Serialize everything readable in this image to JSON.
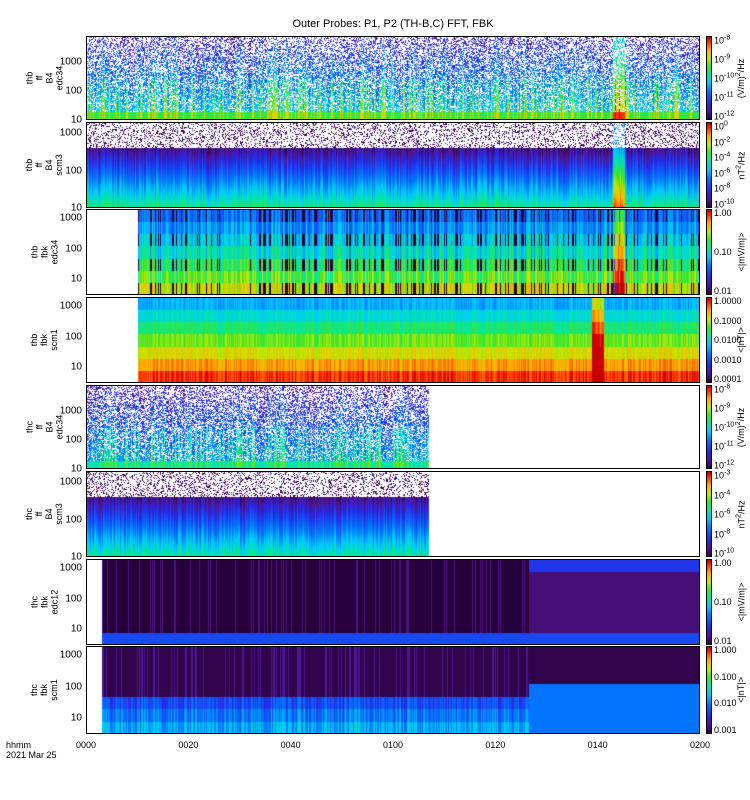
{
  "title": "Outer Probes: P1, P2 (TH-B,C) FFT, FBK",
  "time_label": "hhmm",
  "date_label": "2021 Mar 25",
  "x_ticks": [
    "0000",
    "0020",
    "0040",
    "0100",
    "0120",
    "0140",
    "0200"
  ],
  "chart_data": [
    {
      "type": "heatmap",
      "panel": "thb-ff-b4-edc34",
      "ylabel_lines": [
        "thb",
        "ff",
        "B4",
        "edc34"
      ],
      "y_ticks": [
        "10",
        "100",
        "1000"
      ],
      "y_scale": "log",
      "ylim": [
        10,
        8000
      ],
      "colorbar_ticks": [
        [
          "10",
          "-8"
        ],
        [
          "10",
          "-9"
        ],
        [
          "10",
          "-10"
        ],
        [
          "10",
          "-11"
        ],
        [
          "10",
          "-12"
        ]
      ],
      "colorbar_label": [
        "(V/m)",
        "2",
        "/Hz"
      ],
      "x_range": [
        "0000",
        "0200"
      ],
      "data_extent": [
        "0000",
        "0200"
      ],
      "style": "ff_edc",
      "intensity": 0.45,
      "burst_at": "0144"
    },
    {
      "type": "heatmap",
      "panel": "thb-ff-b4-scm3",
      "ylabel_lines": [
        "thb",
        "ff",
        "B4",
        "scm3"
      ],
      "y_ticks": [
        "10",
        "100",
        "1000"
      ],
      "y_scale": "log",
      "ylim": [
        10,
        2000
      ],
      "colorbar_ticks": [
        [
          "10",
          "0"
        ],
        [
          "10",
          "-2"
        ],
        [
          "10",
          "-4"
        ],
        [
          "10",
          "-6"
        ],
        [
          "10",
          "-8"
        ],
        [
          "10",
          "-10"
        ]
      ],
      "colorbar_label": [
        "nT",
        "2",
        "/Hz"
      ],
      "x_range": [
        "0000",
        "0200"
      ],
      "data_extent": [
        "0000",
        "0200"
      ],
      "style": "ff_scm",
      "intensity": 0.5,
      "burst_at": "0144"
    },
    {
      "type": "heatmap",
      "panel": "thb-fbk-edc34",
      "ylabel_lines": [
        "thb",
        "fbk",
        "edc34"
      ],
      "y_ticks": [
        "10",
        "100",
        "1000"
      ],
      "y_scale": "log",
      "ylim": [
        3,
        2000
      ],
      "colorbar_ticks": [
        [
          "1.00",
          ""
        ],
        [
          "0.10",
          ""
        ],
        [
          "0.01",
          ""
        ]
      ],
      "colorbar_label": [
        "<|mV/m|>"
      ],
      "x_range": [
        "0000",
        "0200"
      ],
      "data_extent": [
        "0010",
        "0200"
      ],
      "style": "fbk_edc",
      "intensity": 0.4,
      "burst_at": "0144"
    },
    {
      "type": "heatmap",
      "panel": "thb-fbk-scm1",
      "ylabel_lines": [
        "thb",
        "fbk",
        "scm1"
      ],
      "y_ticks": [
        "10",
        "100",
        "1000"
      ],
      "y_scale": "log",
      "ylim": [
        3,
        2000
      ],
      "colorbar_ticks": [
        [
          "1.0000",
          ""
        ],
        [
          "0.1000",
          ""
        ],
        [
          "0.0100",
          ""
        ],
        [
          "0.0010",
          ""
        ],
        [
          "0.0001",
          ""
        ]
      ],
      "colorbar_label": [
        "<|nT|>"
      ],
      "x_range": [
        "0000",
        "0200"
      ],
      "data_extent": [
        "0010",
        "0200"
      ],
      "style": "fbk_scm",
      "intensity": 0.5,
      "burst_at": "0140"
    },
    {
      "type": "heatmap",
      "panel": "thc-ff-b4-edc34",
      "ylabel_lines": [
        "thc",
        "ff",
        "B4",
        "edc34"
      ],
      "y_ticks": [
        "10",
        "100",
        "1000"
      ],
      "y_scale": "log",
      "ylim": [
        10,
        8000
      ],
      "colorbar_ticks": [
        [
          "10",
          "-8"
        ],
        [
          "10",
          "-9"
        ],
        [
          "10",
          "-10"
        ],
        [
          "10",
          "-11"
        ],
        [
          "10",
          "-12"
        ]
      ],
      "colorbar_label": [
        "(V/m)",
        "2",
        "/Hz"
      ],
      "x_range": [
        "0000",
        "0200"
      ],
      "data_extent": [
        "0000",
        "0107"
      ],
      "style": "ff_edc",
      "intensity": 0.3,
      "burst_at": ""
    },
    {
      "type": "heatmap",
      "panel": "thc-ff-b4-scm3",
      "ylabel_lines": [
        "thc",
        "ff",
        "B4",
        "scm3"
      ],
      "y_ticks": [
        "10",
        "100",
        "1000"
      ],
      "y_scale": "log",
      "ylim": [
        10,
        2000
      ],
      "colorbar_ticks": [
        [
          "10",
          "-3"
        ],
        [
          "10",
          "-4"
        ],
        [
          "10",
          "-6"
        ],
        [
          "10",
          "-8"
        ],
        [
          "10",
          "-10"
        ]
      ],
      "colorbar_label": [
        "nT",
        "2",
        "/Hz"
      ],
      "x_range": [
        "0000",
        "0200"
      ],
      "data_extent": [
        "0000",
        "0107"
      ],
      "style": "ff_scm",
      "intensity": 0.45,
      "burst_at": ""
    },
    {
      "type": "heatmap",
      "panel": "thc-fbk-edc12",
      "ylabel_lines": [
        "thc",
        "fbk",
        "edc12"
      ],
      "y_ticks": [
        "10",
        "100",
        "1000"
      ],
      "y_scale": "log",
      "ylim": [
        3,
        2000
      ],
      "colorbar_ticks": [
        [
          "1.00",
          ""
        ],
        [
          "0.10",
          ""
        ],
        [
          "0.01",
          ""
        ]
      ],
      "colorbar_label": [
        "<|mV/m|>"
      ],
      "x_range": [
        "0000",
        "0200"
      ],
      "data_extent": [
        "0003",
        "0200"
      ],
      "style": "fbk_dark",
      "intensity": 0.15,
      "burst_at": ""
    },
    {
      "type": "heatmap",
      "panel": "thc-fbk-scm1",
      "ylabel_lines": [
        "thc",
        "fbk",
        "scm1"
      ],
      "y_ticks": [
        "10",
        "100",
        "1000"
      ],
      "y_scale": "log",
      "ylim": [
        3,
        2000
      ],
      "colorbar_ticks": [
        [
          "1.000",
          ""
        ],
        [
          "0.100",
          ""
        ],
        [
          "0.010",
          ""
        ],
        [
          "0.001",
          ""
        ]
      ],
      "colorbar_label": [
        "<|nT|>"
      ],
      "x_range": [
        "0000",
        "0200"
      ],
      "data_extent": [
        "0003",
        "0200"
      ],
      "style": "fbk_dark_scm",
      "intensity": 0.3,
      "burst_at": ""
    }
  ]
}
